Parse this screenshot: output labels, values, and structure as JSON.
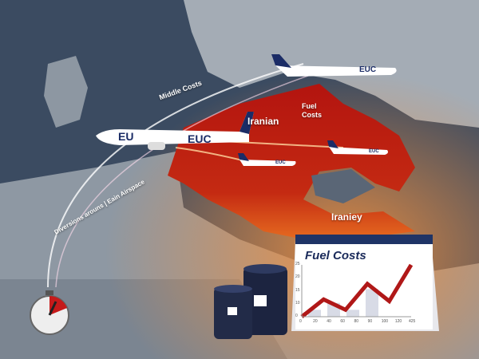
{
  "map": {
    "route_label_top": "Middle Costs",
    "route_label_left": "Diversions arouns | Eain Airspace",
    "region_label_1": "Iranian",
    "region_label_2": "Fuel Costs",
    "region_label_3": "Iraniey"
  },
  "planes": [
    {
      "livery": "EU",
      "livery2": "EUC"
    },
    {
      "livery": "EUC"
    },
    {
      "livery": "EUC"
    },
    {
      "livery": "EUC"
    }
  ],
  "chart_data": {
    "type": "line",
    "title": "Fuel Costs",
    "x_ticks": [
      "0",
      "20",
      "40",
      "60",
      "80",
      "90",
      "100",
      "120",
      "425"
    ],
    "y_ticks": [
      "0",
      "10",
      "15",
      "20",
      "25"
    ],
    "values": [
      0,
      10,
      4,
      19,
      9,
      30
    ],
    "bars": [
      4,
      8,
      4,
      16
    ],
    "trend": "rising",
    "colors": {
      "line": "#b01818",
      "title": "#1a2a5a"
    }
  },
  "colors": {
    "sea": "#3a4a60",
    "land": "#9aa3ad",
    "region": "#b81a14",
    "glow": "#e8742a"
  }
}
